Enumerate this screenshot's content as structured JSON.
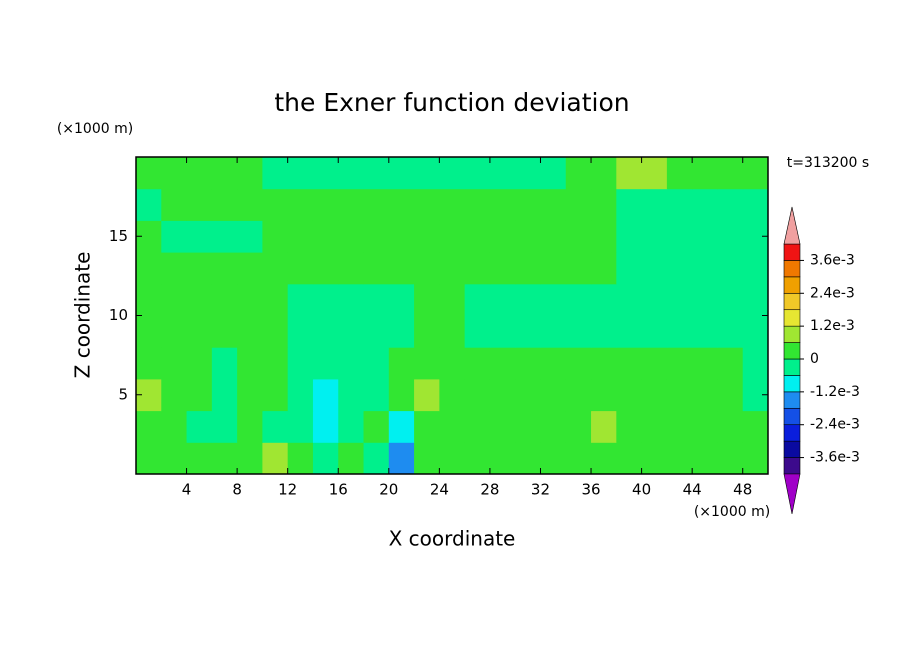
{
  "chart_data": {
    "type": "contour",
    "title": "the Exner function deviation",
    "time_label": "t=313200 s",
    "x_label": "X coordinate",
    "y_label": "Z coordinate",
    "x_unit": "(×1000 m)",
    "y_unit": "(×1000 m)",
    "xlim": [
      0,
      50
    ],
    "ylim": [
      0,
      20
    ],
    "xticks": [
      4,
      8,
      12,
      16,
      20,
      24,
      28,
      32,
      36,
      40,
      44,
      48
    ],
    "yticks": [
      5,
      10,
      15
    ],
    "x": [
      1,
      3,
      5,
      7,
      9,
      11,
      13,
      15,
      17,
      19,
      21,
      23,
      25,
      27,
      29,
      31,
      33,
      35,
      37,
      39,
      41,
      43,
      45,
      47,
      49
    ],
    "y": [
      1,
      3,
      5,
      7,
      9,
      11,
      13,
      15,
      17,
      19
    ],
    "z": [
      [
        0.0003,
        0.0003,
        0.0003,
        0.0003,
        0.0003,
        0.0009,
        0.0003,
        -0.0003,
        0.0003,
        -0.0003,
        -0.0015,
        0.0003,
        0.0003,
        0.0003,
        0.0003,
        0.0003,
        0.0003,
        0.0003,
        0.0003,
        0.0003,
        0.0003,
        0.0003,
        0.0003,
        0.0003,
        0.0003
      ],
      [
        0.0003,
        0.0003,
        -0.0003,
        -0.0003,
        0.0003,
        -0.0003,
        -0.0003,
        -0.0009,
        -0.0003,
        0.0003,
        -0.0009,
        0.0003,
        0.0003,
        0.0003,
        0.0003,
        0.0003,
        0.0003,
        0.0003,
        0.0009,
        0.0003,
        0.0003,
        0.0003,
        0.0003,
        0.0003,
        0.0003
      ],
      [
        0.0009,
        0.0003,
        0.0003,
        -0.0003,
        0.0003,
        0.0003,
        -0.0003,
        -0.0009,
        -0.0003,
        -0.0003,
        0.0003,
        0.0009,
        0.0003,
        0.0003,
        0.0003,
        0.0003,
        0.0003,
        0.0003,
        0.0003,
        0.0003,
        0.0003,
        0.0003,
        0.0003,
        0.0003,
        -0.0003
      ],
      [
        0.0003,
        0.0003,
        0.0003,
        -0.0003,
        0.0003,
        0.0003,
        -0.0003,
        -0.0003,
        -0.0003,
        -0.0003,
        0.0003,
        0.0003,
        0.0003,
        0.0003,
        0.0003,
        0.0003,
        0.0003,
        0.0003,
        0.0003,
        0.0003,
        0.0003,
        0.0003,
        0.0003,
        0.0003,
        -0.0003
      ],
      [
        0.0003,
        0.0003,
        0.0003,
        0.0003,
        0.0003,
        0.0003,
        -0.0003,
        -0.0003,
        -0.0003,
        -0.0003,
        -0.0003,
        0.0003,
        0.0003,
        -0.0003,
        -0.0003,
        -0.0003,
        -0.0003,
        -0.0003,
        -0.0003,
        -0.0003,
        -0.0003,
        -0.0003,
        -0.0003,
        -0.0003,
        -0.0003
      ],
      [
        0.0003,
        0.0003,
        0.0003,
        0.0003,
        0.0003,
        0.0003,
        -0.0003,
        -0.0003,
        -0.0003,
        -0.0003,
        -0.0003,
        0.0003,
        0.0003,
        -0.0003,
        -0.0003,
        -0.0003,
        -0.0003,
        -0.0003,
        -0.0003,
        -0.0003,
        -0.0003,
        -0.0003,
        -0.0003,
        -0.0003,
        -0.0003
      ],
      [
        0.0003,
        0.0003,
        0.0003,
        0.0003,
        0.0003,
        0.0003,
        0.0003,
        0.0003,
        0.0003,
        0.0003,
        0.0003,
        0.0003,
        0.0003,
        0.0003,
        0.0003,
        0.0003,
        0.0003,
        0.0003,
        0.0003,
        -0.0003,
        -0.0003,
        -0.0003,
        -0.0003,
        -0.0003,
        -0.0003
      ],
      [
        0.0003,
        -0.0003,
        -0.0003,
        -0.0003,
        -0.0003,
        0.0003,
        0.0003,
        0.0003,
        0.0003,
        0.0003,
        0.0003,
        0.0003,
        0.0003,
        0.0003,
        0.0003,
        0.0003,
        0.0003,
        0.0003,
        0.0003,
        -0.0003,
        -0.0003,
        -0.0003,
        -0.0003,
        -0.0003,
        -0.0003
      ],
      [
        -0.0003,
        0.0003,
        0.0003,
        0.0003,
        0.0003,
        0.0003,
        0.0003,
        0.0003,
        0.0003,
        0.0003,
        0.0003,
        0.0003,
        0.0003,
        0.0003,
        0.0003,
        0.0003,
        0.0003,
        0.0003,
        0.0003,
        -0.0003,
        -0.0003,
        -0.0003,
        -0.0003,
        -0.0003,
        -0.0003
      ],
      [
        0.0003,
        0.0003,
        0.0003,
        0.0003,
        0.0003,
        -0.0003,
        -0.0003,
        -0.0003,
        -0.0003,
        -0.0003,
        -0.0003,
        -0.0003,
        -0.0003,
        -0.0003,
        -0.0003,
        -0.0003,
        -0.0003,
        0.0003,
        0.0003,
        0.0009,
        0.0009,
        0.0003,
        0.0003,
        0.0003,
        0.0003
      ]
    ],
    "levels": [
      -0.0042,
      -0.0036,
      -0.003,
      -0.0024,
      -0.0018,
      -0.0012,
      -0.0006,
      0,
      0.0006,
      0.0012,
      0.0018,
      0.0024,
      0.003,
      0.0036,
      0.0042
    ],
    "colors": [
      "#a000c8",
      "#3c0a8c",
      "#0a0aa0",
      "#0a1edc",
      "#1450e6",
      "#1e8cf0",
      "#00f0f0",
      "#00f08c",
      "#32e632",
      "#a0e632",
      "#e6e632",
      "#f0c828",
      "#f0a000",
      "#f07800",
      "#f01414",
      "#f0a0a0"
    ],
    "colorbar_ticks": [
      {
        "value": 0.0036,
        "label": "3.6e-3"
      },
      {
        "value": 0.0024,
        "label": "2.4e-3"
      },
      {
        "value": 0.0012,
        "label": "1.2e-3"
      },
      0,
      {
        "value": -0.0012,
        "label": "-1.2e-3"
      },
      {
        "value": -0.0024,
        "label": "-2.4e-3"
      },
      {
        "value": -0.0036,
        "label": "-3.6e-3"
      }
    ]
  }
}
